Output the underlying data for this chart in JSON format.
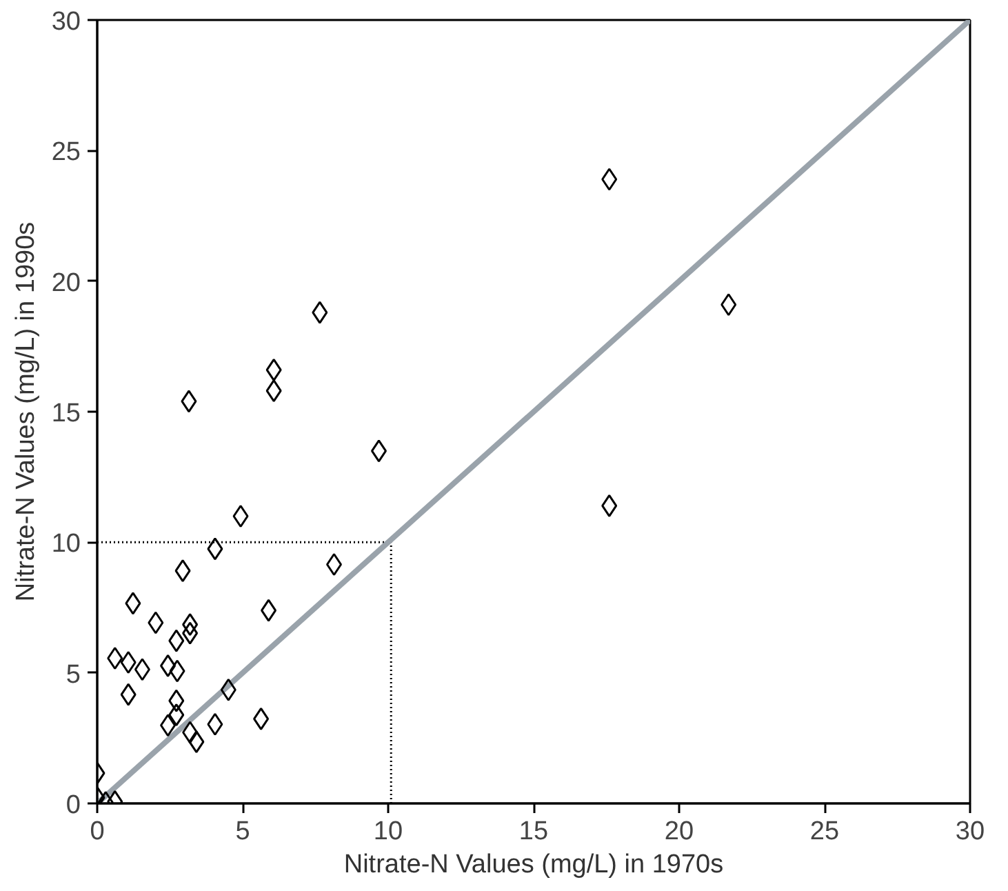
{
  "chart_data": {
    "type": "scatter",
    "xlabel": "Nitrate-N Values (mg/L) in 1970s",
    "ylabel": "Nitrate-N Values (mg/L) in 1990s",
    "xlim": [
      0,
      30
    ],
    "ylim": [
      0,
      30
    ],
    "xticks": [
      0,
      5,
      10,
      15,
      20,
      25,
      30
    ],
    "yticks": [
      0,
      5,
      10,
      15,
      20,
      25,
      30
    ],
    "grid": false,
    "marker": "diamond",
    "series": [
      {
        "color": "#000000",
        "x": [
          17.6,
          21.7,
          7.65,
          6.07,
          6.07,
          3.15,
          9.68,
          17.6,
          4.93,
          4.05,
          2.94,
          8.14,
          1.23,
          5.89,
          2.01,
          3.19,
          3.19,
          2.72,
          0.61,
          1.07,
          1.55,
          2.43,
          2.75,
          1.07,
          4.51,
          2.72,
          2.72,
          2.43,
          5.63,
          4.05,
          3.19,
          3.41,
          0,
          0,
          0.29,
          0.61
        ],
        "values": [
          23.9,
          19.1,
          18.8,
          16.6,
          15.8,
          15.4,
          13.5,
          11.4,
          11.0,
          9.75,
          8.91,
          9.15,
          7.66,
          7.39,
          6.92,
          6.85,
          6.52,
          6.23,
          5.56,
          5.4,
          5.13,
          5.27,
          5.07,
          4.17,
          4.35,
          3.93,
          3.39,
          2.99,
          3.24,
          3.03,
          2.72,
          2.36,
          1.16,
          0.22,
          0.04,
          0.07
        ]
      },
      {
        "type": "line",
        "marker": "none",
        "color": "#9aa3ab",
        "x": [
          0,
          30
        ],
        "values": [
          0,
          30
        ]
      }
    ],
    "ref_lines": [
      {
        "axis": "y",
        "value": 10,
        "color": "#000000",
        "line_style": "dotted"
      },
      {
        "axis": "x",
        "value": 10.1,
        "color": "#000000",
        "line_style": "dotted"
      }
    ]
  }
}
